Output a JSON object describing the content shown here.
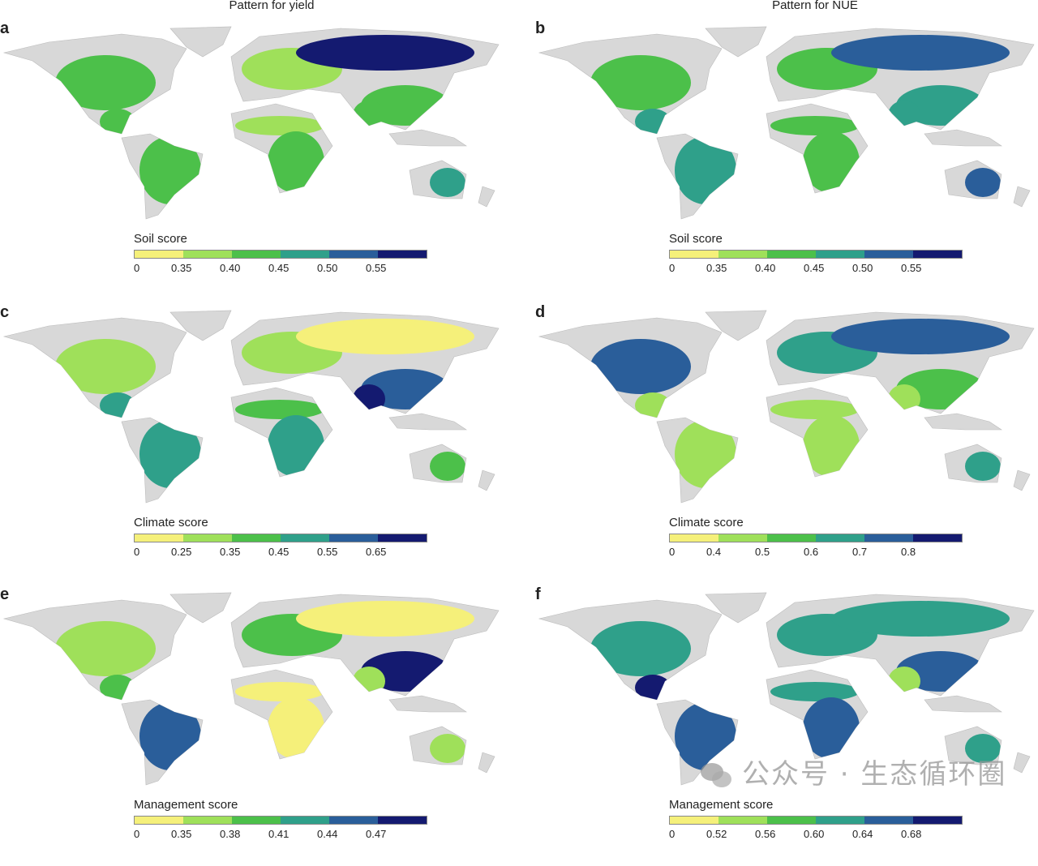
{
  "column_titles": [
    "Pattern for yield",
    "Pattern for NUE"
  ],
  "palette": [
    "#f5f07a",
    "#9fe05a",
    "#4cc04a",
    "#2fa08a",
    "#2a5e9a",
    "#141a70"
  ],
  "land_color": "#d8d8d8",
  "panels": [
    {
      "letter": "a",
      "legend_title": "Soil score",
      "ticks": [
        "0",
        "0.35",
        "0.40",
        "0.45",
        "0.50",
        "0.55"
      ],
      "regions": {
        "na": 2,
        "ca": 2,
        "sa": 2,
        "europe": 1,
        "russia": 5,
        "asia_s": 2,
        "india": 2,
        "sahel": 1,
        "africa_s": 2,
        "aus": 3
      }
    },
    {
      "letter": "b",
      "legend_title": "Soil score",
      "ticks": [
        "0",
        "0.35",
        "0.40",
        "0.45",
        "0.50",
        "0.55"
      ],
      "regions": {
        "na": 2,
        "ca": 3,
        "sa": 3,
        "europe": 2,
        "russia": 4,
        "asia_s": 3,
        "india": 3,
        "sahel": 2,
        "africa_s": 2,
        "aus": 4
      }
    },
    {
      "letter": "c",
      "legend_title": "Climate score",
      "ticks": [
        "0",
        "0.25",
        "0.35",
        "0.45",
        "0.55",
        "0.65"
      ],
      "regions": {
        "na": 1,
        "ca": 3,
        "sa": 3,
        "europe": 1,
        "russia": 0,
        "asia_s": 4,
        "india": 5,
        "sahel": 2,
        "africa_s": 3,
        "aus": 2
      }
    },
    {
      "letter": "d",
      "legend_title": "Climate score",
      "ticks": [
        "0",
        "0.4",
        "0.5",
        "0.6",
        "0.7",
        "0.8"
      ],
      "regions": {
        "na": 4,
        "ca": 1,
        "sa": 1,
        "europe": 3,
        "russia": 4,
        "asia_s": 2,
        "india": 1,
        "sahel": 1,
        "africa_s": 1,
        "aus": 3
      }
    },
    {
      "letter": "e",
      "legend_title": "Management score",
      "ticks": [
        "0",
        "0.35",
        "0.38",
        "0.41",
        "0.44",
        "0.47"
      ],
      "regions": {
        "na": 1,
        "ca": 2,
        "sa": 4,
        "europe": 2,
        "russia": 0,
        "asia_s": 5,
        "india": 1,
        "sahel": 0,
        "africa_s": 0,
        "aus": 1
      }
    },
    {
      "letter": "f",
      "legend_title": "Management score",
      "ticks": [
        "0",
        "0.52",
        "0.56",
        "0.60",
        "0.64",
        "0.68"
      ],
      "regions": {
        "na": 3,
        "ca": 5,
        "sa": 4,
        "europe": 3,
        "russia": 3,
        "asia_s": 4,
        "india": 1,
        "sahel": 3,
        "africa_s": 4,
        "aus": 3
      }
    }
  ],
  "watermark": "公众号 · 生态循环圈"
}
